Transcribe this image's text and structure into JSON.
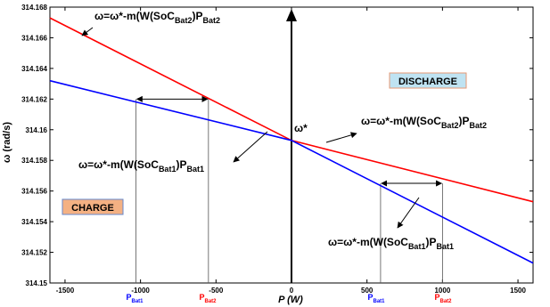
{
  "chart_data": {
    "type": "line",
    "xlabel": "P (W)",
    "ylabel": "ω (rad/s)",
    "xlim": [
      -1600,
      1600
    ],
    "ylim": [
      314.15,
      314.168
    ],
    "x_ticks": [
      -1500,
      -1000,
      -500,
      0,
      500,
      1000,
      1500
    ],
    "x_tick_labels": [
      "-1500",
      "-1000",
      "-500",
      "0",
      "500",
      "1000",
      "1500"
    ],
    "y_ticks": [
      314.15,
      314.152,
      314.154,
      314.156,
      314.158,
      314.16,
      314.162,
      314.164,
      314.166,
      314.168
    ],
    "y_tick_labels": [
      "314.15",
      "314.152",
      "314.154",
      "314.156",
      "314.158",
      "314.16",
      "314.162",
      "314.164",
      "314.166",
      "314.168"
    ],
    "grid": false,
    "series": [
      {
        "name": "Bat2",
        "color": "#ff0000",
        "x": [
          -1600,
          0,
          1600
        ],
        "y": [
          314.1673,
          314.1593,
          314.1553
        ]
      },
      {
        "name": "Bat1",
        "color": "#0000ff",
        "x": [
          -1600,
          0,
          1600
        ],
        "y": [
          314.1632,
          314.1593,
          314.1513
        ]
      }
    ],
    "markers": [
      {
        "x": -1030,
        "y": 314.162,
        "color": "#0000ff",
        "label": "P",
        "sub": "Bat1"
      },
      {
        "x": -550,
        "y": 314.162,
        "color": "#ff0000",
        "label": "P",
        "sub": "Bat2"
      },
      {
        "x": 590,
        "y": 314.1565,
        "color": "#0000ff",
        "label": "P",
        "sub": "Bat1"
      },
      {
        "x": 1000,
        "y": 314.1565,
        "color": "#ff0000",
        "label": "P",
        "sub": "Bat2"
      }
    ],
    "arrows": [
      {
        "x1": -1030,
        "x2": -550,
        "y": 314.162
      },
      {
        "x1": 590,
        "x2": 1000,
        "y": 314.1565
      }
    ],
    "annotations": [
      {
        "id": "eq-top-left",
        "main": "ω=ω*-m(W(SoC",
        "sub1": "Bat2",
        "mid": ")P",
        "sub2": "Bat2"
      },
      {
        "id": "eq-mid-left",
        "main": "ω=ω*-m(W(SoC",
        "sub1": "Bat1",
        "mid": ")P",
        "sub2": "Bat1"
      },
      {
        "id": "eq-mid-right",
        "main": "ω=ω*-m(W(SoC",
        "sub1": "Bat2",
        "mid": ")P",
        "sub2": "Bat2"
      },
      {
        "id": "eq-bottom-right",
        "main": "ω=ω*-m(W(SoC",
        "sub1": "Bat1",
        "mid": ")P",
        "sub2": "Bat1"
      }
    ],
    "omega_star_label": "ω*",
    "regions": {
      "charge": "CHARGE",
      "discharge": "DISCHARGE"
    }
  }
}
